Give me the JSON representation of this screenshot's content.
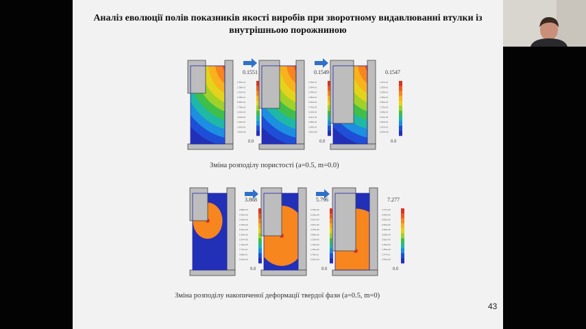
{
  "title": "Аналіз еволюції полів показників якості виробів при зворотному видавлюванні втулки із внутрішньою порожниною",
  "page_number": "43",
  "row1": {
    "caption": "Зміна розподілу пористості (a=0.5, m=0.0)",
    "panels": [
      {
        "max": "0.1551",
        "min": "0.0",
        "labels": [
          "1.551e-01",
          "1.396e-01",
          "1.241e-01",
          "1.086e-01",
          "9.306e-02",
          "7.755e-02",
          "6.204e-02",
          "4.653e-02",
          "3.102e-02",
          "1.551e-02",
          "0.000e+00"
        ]
      },
      {
        "max": "0.1549",
        "min": "0.0",
        "labels": [
          "1.549e-01",
          "1.394e-01",
          "1.239e-01",
          "1.084e-01",
          "9.294e-02",
          "7.745e-02",
          "6.196e-02",
          "4.647e-02",
          "3.098e-02",
          "1.549e-02",
          "0.000e+00"
        ]
      },
      {
        "max": "0.1547",
        "min": "0.0",
        "labels": [
          "1.547e-01",
          "1.392e-01",
          "1.238e-01",
          "1.083e-01",
          "9.282e-02",
          "7.735e-02",
          "6.188e-02",
          "4.641e-02",
          "3.094e-02",
          "1.547e-02",
          "0.000e+00"
        ]
      }
    ]
  },
  "row2": {
    "caption": "Зміна розподілу накопиченої деформації твердої фази (a=0.5, m=0)",
    "panels": [
      {
        "max": "3.868",
        "min": "0.0",
        "labels": [
          "3.868e+00",
          "3.481e+00",
          "3.094e+00",
          "2.708e+00",
          "2.321e+00",
          "1.934e+00",
          "1.547e+00",
          "1.160e+00",
          "7.737e-01",
          "3.868e-01",
          "0.000e+00"
        ]
      },
      {
        "max": "5.796",
        "min": "0.0",
        "labels": [
          "5.796e+00",
          "5.216e+00",
          "4.637e+00",
          "4.057e+00",
          "3.478e+00",
          "2.898e+00",
          "2.318e+00",
          "1.739e+00",
          "1.159e+00",
          "5.796e-01",
          "0.000e+00"
        ]
      },
      {
        "max": "7.277",
        "min": "0.0",
        "labels": [
          "7.277e+00",
          "6.549e+00",
          "5.822e+00",
          "5.094e+00",
          "4.366e+00",
          "3.639e+00",
          "2.911e+00",
          "2.183e+00",
          "1.455e+00",
          "7.277e-01",
          "0.000e+00"
        ]
      }
    ]
  },
  "colors": {
    "scale": [
      "#e0301e",
      "#ef5a1e",
      "#f7861f",
      "#f8b21e",
      "#e3d31c",
      "#9fd12a",
      "#3fbf4a",
      "#1fb8a6",
      "#1c8fe0",
      "#1f4fd6",
      "#2230b8"
    ],
    "arrow": "#2f70c9",
    "die": "#bdbdbd"
  }
}
